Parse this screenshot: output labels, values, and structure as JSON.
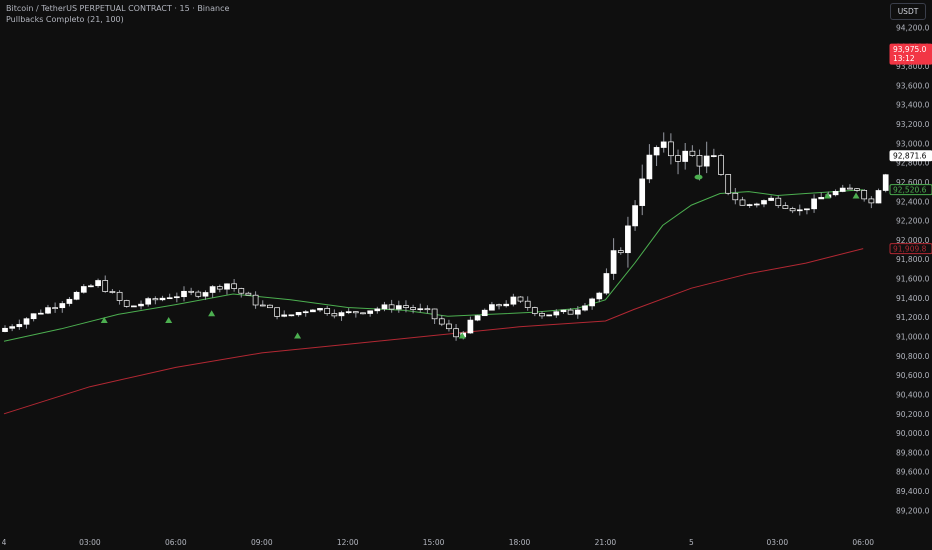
{
  "header": {
    "title": "Bitcoin / TetherUS PERPETUAL CONTRACT · 15 · Binance",
    "indicator": "Pullbacks Completo (21, 100)",
    "currency": "USDT"
  },
  "price_axis": {
    "ticks": [
      "94,200.0",
      "94,000.0",
      "93,800.0",
      "93,600.0",
      "93,400.0",
      "93,200.0",
      "93,000.0",
      "92,800.0",
      "92,600.0",
      "92,400.0",
      "92,200.0",
      "92,000.0",
      "91,800.0",
      "91,600.0",
      "91,400.0",
      "91,200.0",
      "91,000.0",
      "90,800.0",
      "90,600.0",
      "90,400.0",
      "90,200.0",
      "90,000.0",
      "89,800.0",
      "89,600.0",
      "89,400.0",
      "89,200.0"
    ],
    "labels": [
      {
        "text": "93,975.0",
        "sub": "13:12",
        "value": 93975,
        "bg": "#f23645",
        "fg": "#ffffff",
        "name": "countdown-price-label"
      },
      {
        "text": "92,871.6",
        "value": 92871.6,
        "bg": "#ffffff",
        "fg": "#000000",
        "name": "last-price-label"
      },
      {
        "text": "92,520.6",
        "value": 92520.6,
        "bg": "#0f0f0f",
        "fg": "#4caf50",
        "border": "#4caf50",
        "name": "ema-21-label"
      },
      {
        "text": "91,909.8",
        "value": 91909.8,
        "bg": "#0f0f0f",
        "fg": "#b22833",
        "border": "#b22833",
        "name": "ema-100-label"
      }
    ]
  },
  "time_axis": [
    {
      "text": "4",
      "value": "4"
    },
    {
      "text": "03:00",
      "value": "03:00"
    },
    {
      "text": "06:00",
      "value": "06:00"
    },
    {
      "text": "09:00",
      "value": "09:00"
    },
    {
      "text": "12:00",
      "value": "12:00"
    },
    {
      "text": "15:00",
      "value": "15:00"
    },
    {
      "text": "18:00",
      "value": "18:00"
    },
    {
      "text": "21:00",
      "value": "21:00"
    },
    {
      "text": "5",
      "value": "5"
    },
    {
      "text": "03:00",
      "value": "03:00"
    },
    {
      "text": "06:00",
      "value": "06:00"
    }
  ],
  "colors": {
    "background": "#0f0f0f",
    "candle_up": "#ffffff",
    "candle_down": "#0f0f0f",
    "wick": "#9598a1",
    "ema_fast": "#4caf50",
    "ema_slow": "#b22833",
    "marker": "#4caf50",
    "axis_text": "#b2b5be"
  },
  "chart_data": {
    "type": "candlestick",
    "y_range": [
      89100,
      94380
    ],
    "bar_interval_minutes": 15,
    "first_bar_time": "4 00:00",
    "ema_fast": {
      "name": "EMA 21",
      "points": [
        [
          "4 00:00",
          90950
        ],
        [
          "4 02:00",
          91080
        ],
        [
          "4 04:00",
          91230
        ],
        [
          "4 06:00",
          91330
        ],
        [
          "4 08:00",
          91440
        ],
        [
          "4 10:00",
          91380
        ],
        [
          "4 12:00",
          91300
        ],
        [
          "4 14:00",
          91270
        ],
        [
          "4 15:30",
          91210
        ],
        [
          "4 17:00",
          91230
        ],
        [
          "4 18:30",
          91250
        ],
        [
          "4 20:00",
          91290
        ],
        [
          "4 21:00",
          91380
        ],
        [
          "4 22:00",
          91750
        ],
        [
          "4 23:00",
          92150
        ],
        [
          "5 00:00",
          92360
        ],
        [
          "5 01:00",
          92480
        ],
        [
          "5 02:00",
          92500
        ],
        [
          "5 03:00",
          92460
        ],
        [
          "5 04:00",
          92480
        ],
        [
          "5 05:00",
          92500
        ],
        [
          "5 06:00",
          92520
        ]
      ]
    },
    "ema_slow": {
      "name": "EMA 100",
      "points": [
        [
          "4 00:00",
          90200
        ],
        [
          "4 03:00",
          90480
        ],
        [
          "4 06:00",
          90680
        ],
        [
          "4 09:00",
          90830
        ],
        [
          "4 12:00",
          90920
        ],
        [
          "4 15:00",
          91010
        ],
        [
          "4 18:00",
          91100
        ],
        [
          "4 21:00",
          91160
        ],
        [
          "4 22:00",
          91280
        ],
        [
          "5 00:00",
          91500
        ],
        [
          "5 02:00",
          91650
        ],
        [
          "5 04:00",
          91760
        ],
        [
          "5 06:00",
          91910
        ]
      ]
    },
    "markers": [
      {
        "time": "4 03:30",
        "price": 91170,
        "shape": "triangle-up"
      },
      {
        "time": "4 05:45",
        "price": 91170,
        "shape": "triangle-up"
      },
      {
        "time": "4 07:15",
        "price": 91240,
        "shape": "triangle-up"
      },
      {
        "time": "4 10:15",
        "price": 91010,
        "shape": "triangle-up"
      },
      {
        "time": "4 16:00",
        "price": 91010,
        "shape": "triangle-up"
      },
      {
        "time": "5 00:15",
        "price": 92650,
        "shape": "circle"
      },
      {
        "time": "5 04:45",
        "price": 92460,
        "shape": "triangle-up"
      },
      {
        "time": "5 05:45",
        "price": 92460,
        "shape": "triangle-up"
      }
    ]
  }
}
